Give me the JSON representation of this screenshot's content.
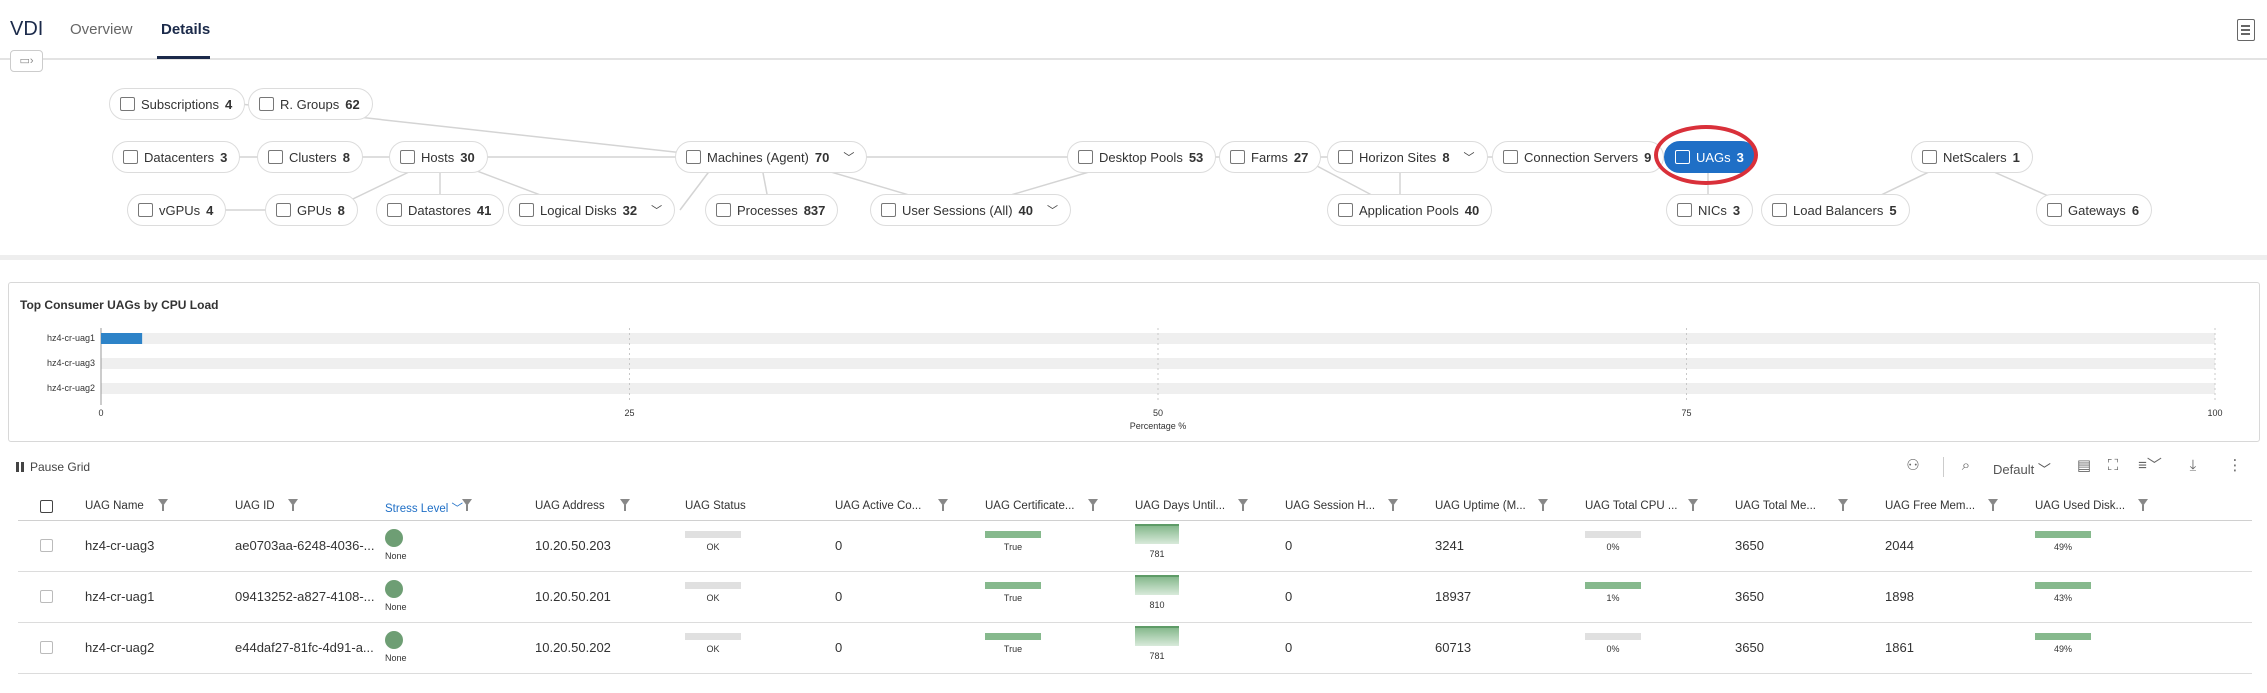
{
  "header": {
    "app_title": "VDI",
    "tabs": [
      {
        "label": "Overview",
        "active": false
      },
      {
        "label": "Details",
        "active": true
      }
    ]
  },
  "topology": {
    "nodes": [
      {
        "id": "subscriptions",
        "label": "Subscriptions",
        "count": "4",
        "icon": "key-icon"
      },
      {
        "id": "rgroups",
        "label": "R. Groups",
        "count": "62",
        "icon": "resource-group-icon"
      },
      {
        "id": "datacenters",
        "label": "Datacenters",
        "count": "3",
        "icon": "building-icon"
      },
      {
        "id": "clusters",
        "label": "Clusters",
        "count": "8",
        "icon": "cluster-icon"
      },
      {
        "id": "hosts",
        "label": "Hosts",
        "count": "30",
        "icon": "host-icon"
      },
      {
        "id": "machines",
        "label": "Machines (Agent)",
        "count": "70",
        "icon": "cloud-machine-icon",
        "expandable": true
      },
      {
        "id": "desktop_pools",
        "label": "Desktop Pools",
        "count": "53",
        "icon": "desktop-pool-icon"
      },
      {
        "id": "farms",
        "label": "Farms",
        "count": "27",
        "icon": "farm-icon"
      },
      {
        "id": "horizon_sites",
        "label": "Horizon Sites",
        "count": "8",
        "icon": "site-icon",
        "expandable": true
      },
      {
        "id": "connection_servers",
        "label": "Connection Servers",
        "count": "9",
        "icon": "server-icon"
      },
      {
        "id": "uags",
        "label": "UAGs",
        "count": "3",
        "icon": "uag-icon",
        "selected": true
      },
      {
        "id": "netscalers",
        "label": "NetScalers",
        "count": "1",
        "icon": "netscaler-icon"
      },
      {
        "id": "vgpus",
        "label": "vGPUs",
        "count": "4",
        "icon": "database-icon"
      },
      {
        "id": "gpus",
        "label": "GPUs",
        "count": "8",
        "icon": "database-icon"
      },
      {
        "id": "datastores",
        "label": "Datastores",
        "count": "41",
        "icon": "datastore-icon"
      },
      {
        "id": "logical_disks",
        "label": "Logical Disks",
        "count": "32",
        "icon": "database-icon",
        "expandable": true
      },
      {
        "id": "processes",
        "label": "Processes",
        "count": "837",
        "icon": "gears-icon"
      },
      {
        "id": "user_sessions",
        "label": "User Sessions (All)",
        "count": "40",
        "icon": "user-session-icon",
        "expandable": true
      },
      {
        "id": "app_pools",
        "label": "Application Pools",
        "count": "40",
        "icon": "app-grid-icon"
      },
      {
        "id": "nics",
        "label": "NICs",
        "count": "3",
        "icon": "nic-icon"
      },
      {
        "id": "load_balancers",
        "label": "Load Balancers",
        "count": "5",
        "icon": "load-balancer-icon"
      },
      {
        "id": "gateways",
        "label": "Gateways",
        "count": "6",
        "icon": "gateway-icon"
      }
    ]
  },
  "chart": {
    "title": "Top Consumer UAGs by CPU Load",
    "xlabel": "Percentage %"
  },
  "chart_data": {
    "type": "bar",
    "orientation": "horizontal",
    "title": "Top Consumer UAGs by CPU Load",
    "categories": [
      "hz4-cr-uag1",
      "hz4-cr-uag3",
      "hz4-cr-uag2"
    ],
    "values": [
      1,
      0,
      0
    ],
    "xlabel": "Percentage %",
    "ylabel": "",
    "xlim": [
      0,
      100
    ],
    "xticks": [
      "0",
      "25",
      "50",
      "75",
      "100"
    ],
    "grid": true,
    "bar_color": "#2d83c8"
  },
  "toolbar": {
    "pause_label": "Pause Grid",
    "view_label": "Default"
  },
  "grid": {
    "columns": [
      {
        "label": "UAG Name"
      },
      {
        "label": "UAG ID"
      },
      {
        "label": "Stress Level",
        "sorted": true
      },
      {
        "label": "UAG Address"
      },
      {
        "label": "UAG Status"
      },
      {
        "label": "UAG Active Co..."
      },
      {
        "label": "UAG Certificate..."
      },
      {
        "label": "UAG Days Until..."
      },
      {
        "label": "UAG Session H..."
      },
      {
        "label": "UAG Uptime (M..."
      },
      {
        "label": "UAG Total CPU ..."
      },
      {
        "label": "UAG Total Me..."
      },
      {
        "label": "UAG Free Mem..."
      },
      {
        "label": "UAG Used Disk..."
      }
    ],
    "rows": [
      {
        "name": "hz4-cr-uag3",
        "id": "ae0703aa-6248-4036-...",
        "stress": "None",
        "address": "10.20.50.203",
        "status": "OK",
        "active": "0",
        "cert": "True",
        "days": "781",
        "session": "0",
        "uptime": "3241",
        "cpu": "0%",
        "cpu_pct": 0,
        "total_mem": "3650",
        "free_mem": "2044",
        "disk": "49%",
        "disk_pct": 49
      },
      {
        "name": "hz4-cr-uag1",
        "id": "09413252-a827-4108-...",
        "stress": "None",
        "address": "10.20.50.201",
        "status": "OK",
        "active": "0",
        "cert": "True",
        "days": "810",
        "session": "0",
        "uptime": "18937",
        "cpu": "1%",
        "cpu_pct": 1,
        "total_mem": "3650",
        "free_mem": "1898",
        "disk": "43%",
        "disk_pct": 43
      },
      {
        "name": "hz4-cr-uag2",
        "id": "e44daf27-81fc-4d91-a...",
        "stress": "None",
        "address": "10.20.50.202",
        "status": "OK",
        "active": "0",
        "cert": "True",
        "days": "781",
        "session": "0",
        "uptime": "60713",
        "cpu": "0%",
        "cpu_pct": 0,
        "total_mem": "3650",
        "free_mem": "1861",
        "disk": "49%",
        "disk_pct": 49
      }
    ]
  }
}
